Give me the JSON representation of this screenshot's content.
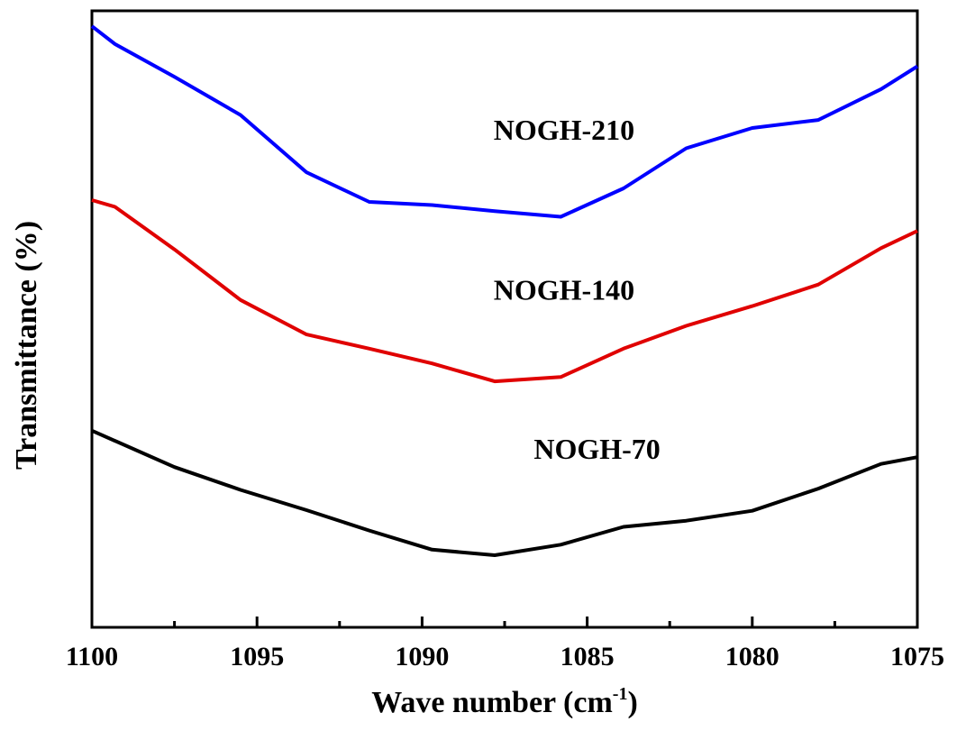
{
  "chart_data": {
    "type": "line",
    "xlabel": "Wave number (cm",
    "xlabel_superscript": "-1",
    "xlabel_close": ")",
    "ylabel": "Transmittance (%)",
    "xlim": [
      1100,
      1075
    ],
    "ylim": [
      0,
      100
    ],
    "x_ticks": [
      "1100",
      "1095",
      "1090",
      "1085",
      "1080",
      "1075"
    ],
    "grid": false,
    "legend": "none",
    "series": [
      {
        "name": "NOGH-210",
        "color": "#0000ff",
        "x": [
          1100,
          1099.3,
          1097.5,
          1095.5,
          1093.5,
          1091.6,
          1089.7,
          1087.8,
          1085.8,
          1083.9,
          1082,
          1080,
          1078,
          1076.1,
          1075
        ],
        "y": [
          97.5,
          94.6,
          89.3,
          83.1,
          73.8,
          69,
          68.5,
          67.5,
          66.6,
          71.2,
          77.7,
          81,
          82.3,
          87.3,
          91
        ]
      },
      {
        "name": "NOGH-140",
        "color": "#e00000",
        "x": [
          1100,
          1099.3,
          1097.5,
          1095.5,
          1093.5,
          1091.6,
          1089.7,
          1087.8,
          1085.8,
          1083.9,
          1082,
          1080,
          1078,
          1076.1,
          1075
        ],
        "y": [
          69.3,
          68.2,
          61.3,
          53.1,
          47.5,
          45.2,
          42.8,
          39.9,
          40.6,
          45.2,
          48.9,
          52.1,
          55.6,
          61.5,
          64.3
        ]
      },
      {
        "name": "NOGH-70",
        "color": "#000000",
        "x": [
          1100,
          1097.5,
          1095.5,
          1093.5,
          1091.6,
          1089.7,
          1087.8,
          1085.8,
          1083.9,
          1082,
          1080,
          1078,
          1076.1,
          1075
        ],
        "y": [
          31.9,
          26,
          22.3,
          19,
          15.7,
          12.6,
          11.7,
          13.4,
          16.3,
          17.3,
          18.9,
          22.5,
          26.5,
          27.6
        ]
      }
    ]
  }
}
